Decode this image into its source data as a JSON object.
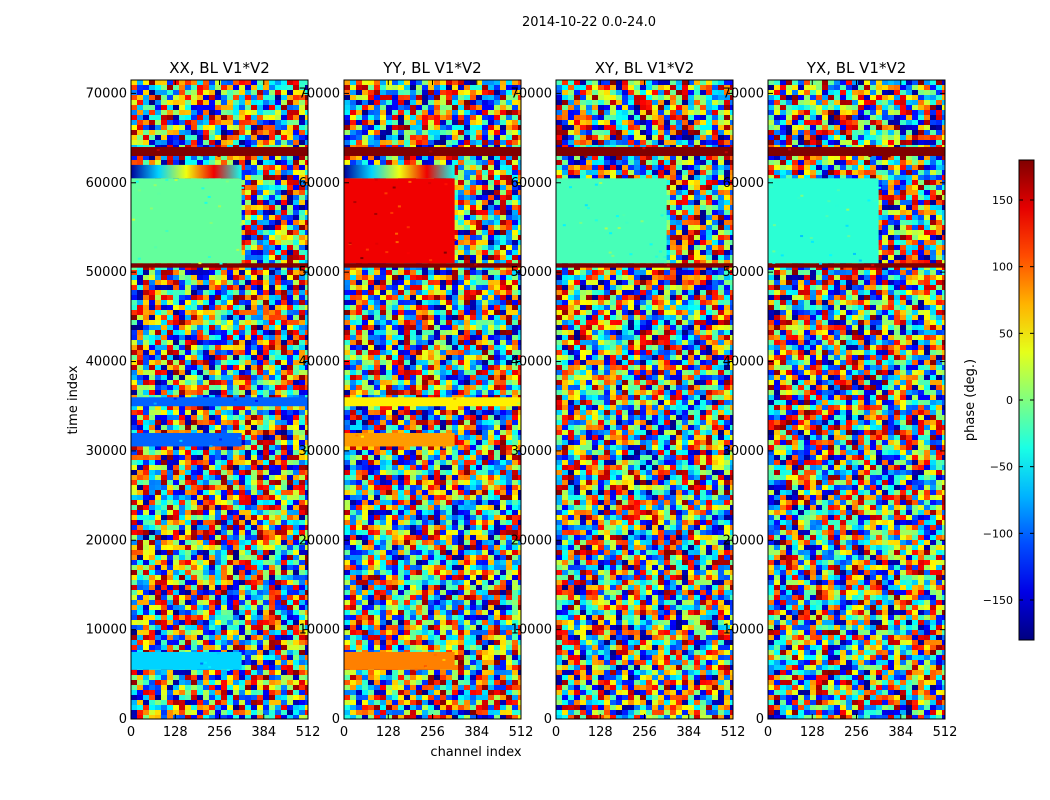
{
  "suptitle": "2014-10-22 0.0-24.0",
  "xlabel": "channel index",
  "ylabel": "time index",
  "colorbar": {
    "label": "phase (deg.)",
    "range": [
      -180,
      180
    ],
    "ticks": [
      "150",
      "100",
      "50",
      "0",
      "−50",
      "−100",
      "−150"
    ],
    "tick_values": [
      150,
      100,
      50,
      0,
      -50,
      -100,
      -150
    ],
    "colormap": "jet"
  },
  "chart_data": [
    {
      "type": "heatmap",
      "title": "XX, BL V1*V2",
      "xlabel": "",
      "ylabel": "time index",
      "xlim": [
        0,
        512
      ],
      "ylim": [
        0,
        71500
      ],
      "xticks": [
        0,
        128,
        256,
        384,
        512
      ],
      "yticks": [
        0,
        10000,
        20000,
        30000,
        40000,
        50000,
        60000,
        70000
      ],
      "value_unit": "phase (deg.)",
      "bands": [
        {
          "y": [
            50500,
            51000
          ],
          "x": [
            0,
            512
          ],
          "value": 180
        },
        {
          "y": [
            63000,
            64000
          ],
          "x": [
            0,
            512
          ],
          "value": 180
        },
        {
          "y": [
            51000,
            60500
          ],
          "x": [
            0,
            320
          ],
          "value": -10
        },
        {
          "y": [
            60500,
            62000
          ],
          "x": [
            0,
            320
          ],
          "value": "gradient"
        },
        {
          "y": [
            30500,
            32000
          ],
          "x": [
            0,
            320
          ],
          "value": -100
        },
        {
          "y": [
            35000,
            36000
          ],
          "x": [
            0,
            512
          ],
          "value": -100
        },
        {
          "y": [
            5500,
            7500
          ],
          "x": [
            0,
            320
          ],
          "value": -60
        }
      ]
    },
    {
      "type": "heatmap",
      "title": "YY, BL V1*V2",
      "xlabel": "channel index",
      "xlim": [
        0,
        512
      ],
      "ylim": [
        0,
        71500
      ],
      "xticks": [
        0,
        128,
        256,
        384,
        512
      ],
      "yticks": [
        0,
        10000,
        20000,
        30000,
        40000,
        50000,
        60000,
        70000
      ],
      "value_unit": "phase (deg.)",
      "bands": [
        {
          "y": [
            50500,
            51000
          ],
          "x": [
            0,
            512
          ],
          "value": 180
        },
        {
          "y": [
            63000,
            64000
          ],
          "x": [
            0,
            512
          ],
          "value": 180
        },
        {
          "y": [
            51000,
            60500
          ],
          "x": [
            0,
            320
          ],
          "value": 140
        },
        {
          "y": [
            60500,
            62000
          ],
          "x": [
            0,
            320
          ],
          "value": "gradient"
        },
        {
          "y": [
            30500,
            32000
          ],
          "x": [
            0,
            320
          ],
          "value": 80
        },
        {
          "y": [
            35000,
            36000
          ],
          "x": [
            0,
            512
          ],
          "value": 50
        },
        {
          "y": [
            5500,
            7500
          ],
          "x": [
            0,
            320
          ],
          "value": 90
        }
      ]
    },
    {
      "type": "heatmap",
      "title": "XY, BL V1*V2",
      "xlabel": "",
      "xlim": [
        0,
        512
      ],
      "ylim": [
        0,
        71500
      ],
      "xticks": [
        0,
        128,
        256,
        384,
        512
      ],
      "yticks": [
        0,
        10000,
        20000,
        30000,
        40000,
        50000,
        60000,
        70000
      ],
      "value_unit": "phase (deg.)",
      "bands": [
        {
          "y": [
            50500,
            51000
          ],
          "x": [
            0,
            512
          ],
          "value": 180
        },
        {
          "y": [
            63000,
            64000
          ],
          "x": [
            0,
            512
          ],
          "value": 180
        },
        {
          "y": [
            51000,
            60500
          ],
          "x": [
            0,
            320
          ],
          "value": -20
        }
      ]
    },
    {
      "type": "heatmap",
      "title": "YX, BL V1*V2",
      "xlabel": "",
      "xlim": [
        0,
        512
      ],
      "ylim": [
        0,
        71500
      ],
      "xticks": [
        0,
        128,
        256,
        384,
        512
      ],
      "yticks": [
        0,
        10000,
        20000,
        30000,
        40000,
        50000,
        60000,
        70000
      ],
      "value_unit": "phase (deg.)",
      "bands": [
        {
          "y": [
            50500,
            51000
          ],
          "x": [
            0,
            512
          ],
          "value": 180
        },
        {
          "y": [
            63000,
            64000
          ],
          "x": [
            0,
            512
          ],
          "value": 180
        },
        {
          "y": [
            51000,
            60500
          ],
          "x": [
            0,
            320
          ],
          "value": -30
        }
      ]
    }
  ]
}
